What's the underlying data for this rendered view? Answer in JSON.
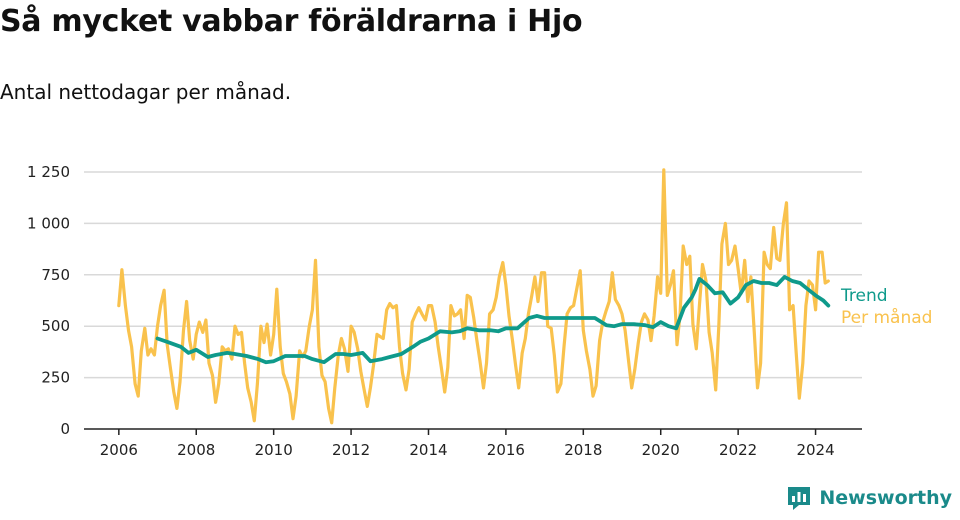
{
  "title": "Så mycket vabbar föräldrarna i Hjo",
  "subtitle": "Antal nettodagar per månad.",
  "brand": "Newsworthy",
  "colors": {
    "trend": "#0f9a8b",
    "monthly": "#f9c24d",
    "grid": "#d9d9d9",
    "axis": "#222222",
    "brand": "#1a8a8a"
  },
  "chart_data": {
    "type": "line",
    "xlim": [
      2005.1,
      2025.2
    ],
    "ylim": [
      0,
      1250
    ],
    "xticks": [
      2006,
      2008,
      2010,
      2012,
      2014,
      2016,
      2018,
      2020,
      2022,
      2024
    ],
    "xtick_labels": [
      "2006",
      "2008",
      "2010",
      "2012",
      "2014",
      "2016",
      "2018",
      "2020",
      "2022",
      "2024"
    ],
    "yticks": [
      0,
      250,
      500,
      750,
      1000,
      1250
    ],
    "ytick_labels": [
      "0",
      "250",
      "500",
      "750",
      "1 000",
      "1 250"
    ],
    "grid": true,
    "series": [
      {
        "name": "Per månad",
        "color": "#f9c24d",
        "x": [
          2006.0,
          2006.08,
          2006.17,
          2006.25,
          2006.33,
          2006.42,
          2006.5,
          2006.58,
          2006.67,
          2006.75,
          2006.83,
          2006.92,
          2007.0,
          2007.08,
          2007.17,
          2007.25,
          2007.33,
          2007.42,
          2007.5,
          2007.58,
          2007.67,
          2007.75,
          2007.83,
          2007.92,
          2008.0,
          2008.08,
          2008.17,
          2008.25,
          2008.33,
          2008.42,
          2008.5,
          2008.58,
          2008.67,
          2008.75,
          2008.83,
          2008.92,
          2009.0,
          2009.08,
          2009.17,
          2009.25,
          2009.33,
          2009.42,
          2009.5,
          2009.58,
          2009.67,
          2009.75,
          2009.83,
          2009.92,
          2010.0,
          2010.08,
          2010.17,
          2010.25,
          2010.33,
          2010.42,
          2010.5,
          2010.58,
          2010.67,
          2010.75,
          2010.83,
          2010.92,
          2011.0,
          2011.08,
          2011.17,
          2011.25,
          2011.33,
          2011.42,
          2011.5,
          2011.58,
          2011.67,
          2011.75,
          2011.83,
          2011.92,
          2012.0,
          2012.08,
          2012.17,
          2012.25,
          2012.33,
          2012.42,
          2012.5,
          2012.58,
          2012.67,
          2012.75,
          2012.83,
          2012.92,
          2013.0,
          2013.08,
          2013.17,
          2013.25,
          2013.33,
          2013.42,
          2013.5,
          2013.58,
          2013.67,
          2013.75,
          2013.83,
          2013.92,
          2014.0,
          2014.08,
          2014.17,
          2014.25,
          2014.33,
          2014.42,
          2014.5,
          2014.58,
          2014.67,
          2014.75,
          2014.83,
          2014.92,
          2015.0,
          2015.08,
          2015.17,
          2015.25,
          2015.33,
          2015.42,
          2015.5,
          2015.58,
          2015.67,
          2015.75,
          2015.83,
          2015.92,
          2016.0,
          2016.08,
          2016.17,
          2016.25,
          2016.33,
          2016.42,
          2016.5,
          2016.58,
          2016.67,
          2016.75,
          2016.83,
          2016.92,
          2017.0,
          2017.08,
          2017.17,
          2017.25,
          2017.33,
          2017.42,
          2017.5,
          2017.58,
          2017.67,
          2017.75,
          2017.83,
          2017.92,
          2018.0,
          2018.08,
          2018.17,
          2018.25,
          2018.33,
          2018.42,
          2018.5,
          2018.58,
          2018.67,
          2018.75,
          2018.83,
          2018.92,
          2019.0,
          2019.08,
          2019.17,
          2019.25,
          2019.33,
          2019.42,
          2019.5,
          2019.58,
          2019.67,
          2019.75,
          2019.83,
          2019.92,
          2020.0,
          2020.08,
          2020.17,
          2020.25,
          2020.33,
          2020.42,
          2020.5,
          2020.58,
          2020.67,
          2020.75,
          2020.83,
          2020.92,
          2021.0,
          2021.08,
          2021.17,
          2021.25,
          2021.33,
          2021.42,
          2021.5,
          2021.58,
          2021.67,
          2021.75,
          2021.83,
          2021.92,
          2022.0,
          2022.08,
          2022.17,
          2022.25,
          2022.33,
          2022.42,
          2022.5,
          2022.58,
          2022.67,
          2022.75,
          2022.83,
          2022.92,
          2023.0,
          2023.08,
          2023.17,
          2023.25,
          2023.33,
          2023.42,
          2023.5,
          2023.58,
          2023.67,
          2023.75,
          2023.83,
          2023.92,
          2024.0,
          2024.08,
          2024.17,
          2024.25,
          2024.33
        ],
        "values": [
          600,
          775,
          600,
          480,
          400,
          220,
          160,
          380,
          490,
          360,
          390,
          360,
          500,
          600,
          675,
          410,
          300,
          180,
          100,
          230,
          480,
          620,
          430,
          340,
          460,
          520,
          470,
          530,
          320,
          260,
          130,
          220,
          400,
          380,
          390,
          340,
          500,
          460,
          470,
          320,
          200,
          130,
          40,
          220,
          500,
          420,
          510,
          360,
          460,
          680,
          400,
          270,
          230,
          170,
          50,
          160,
          380,
          350,
          380,
          500,
          580,
          820,
          400,
          260,
          230,
          100,
          30,
          200,
          360,
          440,
          390,
          280,
          500,
          470,
          390,
          280,
          200,
          110,
          200,
          310,
          460,
          450,
          440,
          580,
          610,
          590,
          600,
          400,
          270,
          190,
          290,
          520,
          560,
          590,
          560,
          530,
          600,
          600,
          520,
          400,
          300,
          180,
          300,
          600,
          550,
          560,
          580,
          440,
          650,
          640,
          540,
          430,
          330,
          200,
          320,
          560,
          580,
          640,
          740,
          810,
          700,
          550,
          430,
          310,
          200,
          370,
          440,
          560,
          650,
          740,
          620,
          760,
          760,
          500,
          490,
          360,
          180,
          220,
          400,
          560,
          590,
          600,
          680,
          770,
          480,
          380,
          290,
          160,
          210,
          430,
          520,
          570,
          620,
          760,
          630,
          600,
          560,
          480,
          330,
          200,
          290,
          420,
          520,
          560,
          530,
          430,
          550,
          740,
          660,
          1260,
          650,
          700,
          770,
          410,
          560,
          890,
          800,
          840,
          510,
          390,
          600,
          800,
          720,
          470,
          370,
          190,
          500,
          900,
          1000,
          800,
          820,
          890,
          780,
          660,
          820,
          620,
          740,
          460,
          200,
          320,
          860,
          800,
          780,
          980,
          830,
          820,
          1000,
          1100,
          580,
          600,
          370,
          150,
          320,
          600,
          720,
          700,
          580,
          860,
          860,
          710,
          720
        ]
      },
      {
        "name": "Trend",
        "color": "#0f9a8b",
        "x": [
          2007.0,
          2007.3,
          2007.6,
          2007.8,
          2008.0,
          2008.3,
          2008.5,
          2008.8,
          2009.0,
          2009.3,
          2009.6,
          2009.8,
          2010.0,
          2010.3,
          2010.6,
          2010.8,
          2011.0,
          2011.3,
          2011.6,
          2011.8,
          2012.0,
          2012.3,
          2012.5,
          2012.8,
          2013.0,
          2013.3,
          2013.6,
          2013.8,
          2014.0,
          2014.3,
          2014.6,
          2014.8,
          2015.0,
          2015.3,
          2015.6,
          2015.8,
          2016.0,
          2016.3,
          2016.6,
          2016.8,
          2017.0,
          2017.3,
          2017.6,
          2017.8,
          2018.0,
          2018.3,
          2018.6,
          2018.8,
          2019.0,
          2019.3,
          2019.6,
          2019.8,
          2020.0,
          2020.2,
          2020.4,
          2020.6,
          2020.8,
          2020.9,
          2021.0,
          2021.2,
          2021.4,
          2021.6,
          2021.8,
          2022.0,
          2022.2,
          2022.4,
          2022.6,
          2022.8,
          2023.0,
          2023.2,
          2023.4,
          2023.6,
          2023.8,
          2024.0,
          2024.2,
          2024.33
        ],
        "values": [
          440,
          420,
          400,
          370,
          385,
          350,
          360,
          370,
          365,
          355,
          340,
          325,
          330,
          355,
          355,
          355,
          340,
          325,
          365,
          365,
          360,
          370,
          330,
          340,
          350,
          365,
          400,
          425,
          440,
          475,
          470,
          475,
          490,
          480,
          480,
          475,
          490,
          490,
          540,
          550,
          540,
          540,
          540,
          540,
          540,
          540,
          505,
          500,
          510,
          510,
          505,
          495,
          520,
          500,
          490,
          590,
          640,
          680,
          730,
          700,
          660,
          665,
          610,
          640,
          700,
          720,
          710,
          710,
          700,
          740,
          720,
          710,
          680,
          650,
          625,
          600
        ]
      }
    ]
  }
}
